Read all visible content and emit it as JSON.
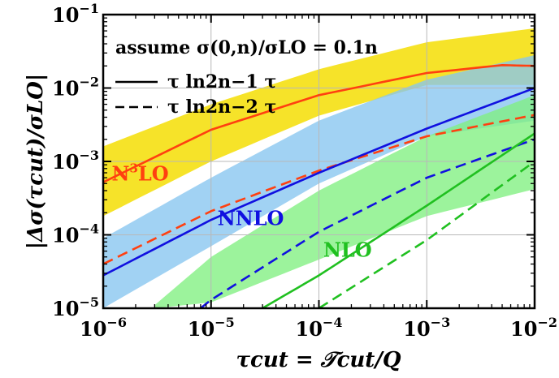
{
  "chart_data": {
    "type": "line",
    "xscale": "log",
    "yscale": "log",
    "xlim": [
      1e-06,
      0.01
    ],
    "ylim": [
      1e-05,
      0.1
    ],
    "grid": true,
    "xlabel": "τcut = 𝒯cut/Q",
    "ylabel": "|Δσ(τcut)/σLO|",
    "x_ticks": [
      {
        "base": "10",
        "exp": "−6"
      },
      {
        "base": "10",
        "exp": "−5"
      },
      {
        "base": "10",
        "exp": "−4"
      },
      {
        "base": "10",
        "exp": "−3"
      },
      {
        "base": "10",
        "exp": "−2"
      }
    ],
    "y_ticks": [
      {
        "base": "10",
        "exp": "−5"
      },
      {
        "base": "10",
        "exp": "−4"
      },
      {
        "base": "10",
        "exp": "−3"
      },
      {
        "base": "10",
        "exp": "−2"
      },
      {
        "base": "10",
        "exp": "−1"
      }
    ],
    "legend": {
      "placement": "top-left",
      "title": "assume σ(0,n)/σLO = 0.1n",
      "entries": [
        {
          "style": "solid",
          "label": "τ ln2n−1 τ"
        },
        {
          "style": "dashed",
          "label": "τ ln2n−2 τ"
        }
      ]
    },
    "bands": [
      {
        "name": "N3LO",
        "color": "#f5e11e",
        "x": [
          1e-06,
          1e-05,
          0.0001,
          0.001,
          0.01
        ],
        "lower": [
          0.00018,
          0.001,
          0.0042,
          0.011,
          0.011
        ],
        "upper": [
          0.0016,
          0.006,
          0.018,
          0.042,
          0.065
        ]
      },
      {
        "name": "NNLO",
        "color": "#87c5f0",
        "x": [
          1e-06,
          1e-05,
          0.0001,
          0.001,
          0.01
        ],
        "lower": [
          1e-05,
          7e-05,
          0.0005,
          0.0022,
          0.0036
        ],
        "upper": [
          9e-05,
          0.0006,
          0.0036,
          0.013,
          0.028
        ]
      },
      {
        "name": "NLO",
        "color": "#80f080",
        "x": [
          3e-06,
          1e-05,
          0.0001,
          0.001,
          0.01
        ],
        "lower": [
          1e-05,
          1.2e-05,
          4.6e-05,
          0.00018,
          0.00042
        ],
        "upper": [
          1.1e-05,
          5e-05,
          0.0004,
          0.0022,
          0.008
        ]
      }
    ],
    "series": [
      {
        "name": "N3LO",
        "style": "solid",
        "color": "#ff4010",
        "x": [
          1e-06,
          1e-05,
          0.0001,
          0.001,
          0.005,
          0.01
        ],
        "y": [
          0.00052,
          0.0027,
          0.008,
          0.016,
          0.0205,
          0.02
        ]
      },
      {
        "name": "N3LO",
        "style": "dashed",
        "color": "#ff4010",
        "x": [
          1e-06,
          1e-05,
          0.0001,
          0.001,
          0.01
        ],
        "y": [
          4e-05,
          0.00021,
          0.00075,
          0.0022,
          0.0043
        ]
      },
      {
        "name": "NNLO",
        "style": "solid",
        "color": "#1010e0",
        "x": [
          1e-06,
          1e-05,
          0.0001,
          0.001,
          0.01
        ],
        "y": [
          2.8e-05,
          0.00016,
          0.0007,
          0.0028,
          0.01
        ]
      },
      {
        "name": "NNLO",
        "style": "dashed",
        "color": "#1010e0",
        "x": [
          8e-06,
          1e-05,
          0.0001,
          0.001,
          0.01
        ],
        "y": [
          1e-05,
          1.3e-05,
          0.00011,
          0.0006,
          0.002
        ]
      },
      {
        "name": "NLO",
        "style": "solid",
        "color": "#20c020",
        "x": [
          3e-05,
          0.0001,
          0.001,
          0.01
        ],
        "y": [
          1e-05,
          2.8e-05,
          0.00025,
          0.0024
        ]
      },
      {
        "name": "NLO",
        "style": "dashed",
        "color": "#20c020",
        "x": [
          0.0001,
          0.001,
          0.01
        ],
        "y": [
          1e-05,
          8.5e-05,
          0.001
        ]
      }
    ],
    "annotations": [
      {
        "text": "N",
        "sup": "3",
        "rest": "LO",
        "color": "#ff4010",
        "x": 1.2e-06,
        "y": 0.00055
      },
      {
        "text": "NNLO",
        "sup": "",
        "rest": "",
        "color": "#1010e0",
        "x": 1.15e-05,
        "y": 0.000135
      },
      {
        "text": "NLO",
        "sup": "",
        "rest": "",
        "color": "#20c020",
        "x": 0.00011,
        "y": 5e-05
      }
    ]
  }
}
